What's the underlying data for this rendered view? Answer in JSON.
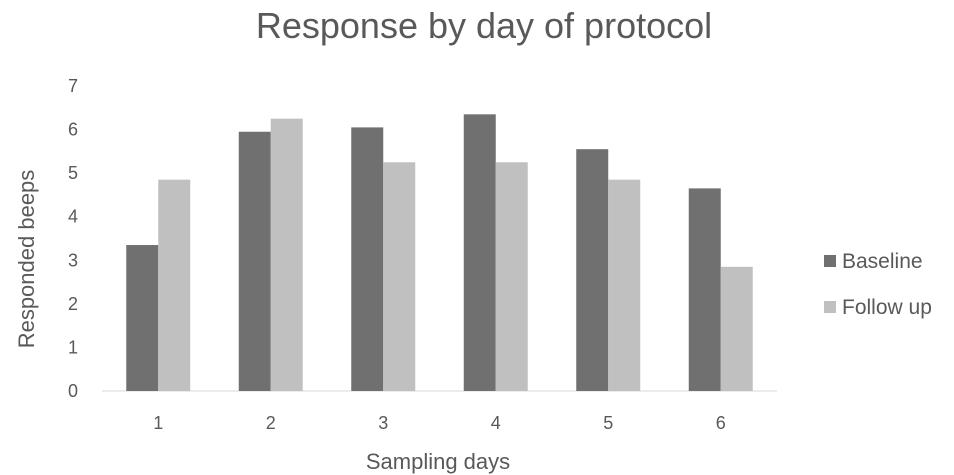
{
  "chart_data": {
    "type": "bar",
    "title": "Response by day of protocol",
    "xlabel": "Sampling days",
    "ylabel": "Responded beeps",
    "categories": [
      "1",
      "2",
      "3",
      "4",
      "5",
      "6"
    ],
    "series": [
      {
        "name": "Baseline",
        "values": [
          3.35,
          5.95,
          6.05,
          6.35,
          5.55,
          4.65
        ],
        "color": "#707070"
      },
      {
        "name": "Follow up",
        "values": [
          4.85,
          6.25,
          5.25,
          5.25,
          4.85,
          2.85
        ],
        "color": "#c0c0c0"
      }
    ],
    "ylim": [
      0,
      7
    ],
    "yticks": [
      "0",
      "1",
      "2",
      "3",
      "4",
      "5",
      "6",
      "7"
    ],
    "grid": false,
    "legend_position": "right"
  }
}
